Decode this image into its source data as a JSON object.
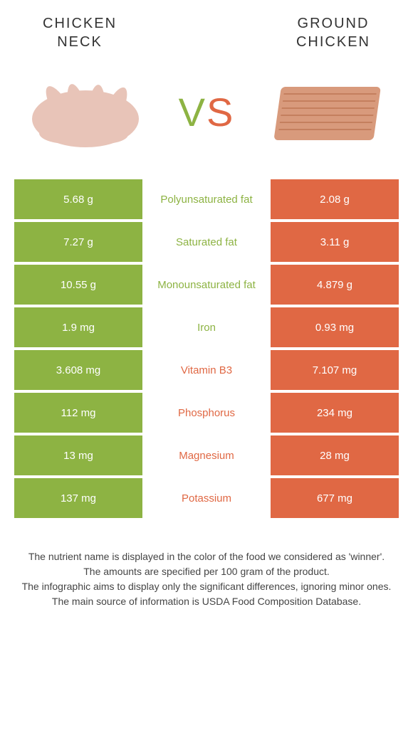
{
  "colors": {
    "green": "#8db343",
    "orange": "#e06844",
    "text": "#333333",
    "white": "#ffffff"
  },
  "foods": {
    "left": {
      "title_line1": "CHICKEN",
      "title_line2": "NECK"
    },
    "right": {
      "title_line1": "GROUND",
      "title_line2": "CHICKEN"
    }
  },
  "vs_label": "VS",
  "rows": [
    {
      "left": "5.68 g",
      "label": "Polyunsaturated fat",
      "right": "2.08 g",
      "winner": "left"
    },
    {
      "left": "7.27 g",
      "label": "Saturated fat",
      "right": "3.11 g",
      "winner": "left"
    },
    {
      "left": "10.55 g",
      "label": "Monounsaturated fat",
      "right": "4.879 g",
      "winner": "left"
    },
    {
      "left": "1.9 mg",
      "label": "Iron",
      "right": "0.93 mg",
      "winner": "left"
    },
    {
      "left": "3.608 mg",
      "label": "Vitamin B3",
      "right": "7.107 mg",
      "winner": "right"
    },
    {
      "left": "112 mg",
      "label": "Phosphorus",
      "right": "234 mg",
      "winner": "right"
    },
    {
      "left": "13 mg",
      "label": "Magnesium",
      "right": "28 mg",
      "winner": "right"
    },
    {
      "left": "137 mg",
      "label": "Potassium",
      "right": "677 mg",
      "winner": "right"
    }
  ],
  "footer_lines": [
    "The nutrient name is displayed in the color of the food we considered as 'winner'.",
    "The amounts are specified per 100 gram of the product.",
    "The infographic aims to display only the significant differences, ignoring minor ones.",
    "The main source of information is USDA Food Composition Database."
  ]
}
